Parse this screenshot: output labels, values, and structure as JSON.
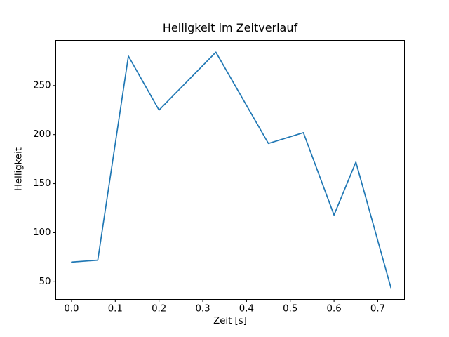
{
  "figure": {
    "title": "Helligkeit im Zeitverlauf",
    "xlabel": "Zeit [s]",
    "ylabel": "Helligkeit"
  },
  "chart_data": {
    "type": "line",
    "title": "Helligkeit im Zeitverlauf",
    "xlabel": "Zeit [s]",
    "ylabel": "Helligkeit",
    "x": [
      0.0,
      0.06,
      0.13,
      0.2,
      0.33,
      0.45,
      0.53,
      0.6,
      0.65,
      0.73
    ],
    "y": [
      70,
      72,
      280,
      225,
      284,
      191,
      202,
      118,
      172,
      44
    ],
    "xlim": [
      -0.036,
      0.761
    ],
    "ylim": [
      32,
      296
    ],
    "xticks": [
      0.0,
      0.1,
      0.2,
      0.3,
      0.4,
      0.5,
      0.6,
      0.7
    ],
    "xtick_labels": [
      "0.0",
      "0.1",
      "0.2",
      "0.3",
      "0.4",
      "0.5",
      "0.6",
      "0.7"
    ],
    "yticks": [
      50,
      100,
      150,
      200,
      250
    ],
    "ytick_labels": [
      "50",
      "100",
      "150",
      "200",
      "250"
    ],
    "line_color": "#1f77b4",
    "axis_color": "#000000",
    "background_color": "#ffffff",
    "grid": false,
    "legend": null
  }
}
